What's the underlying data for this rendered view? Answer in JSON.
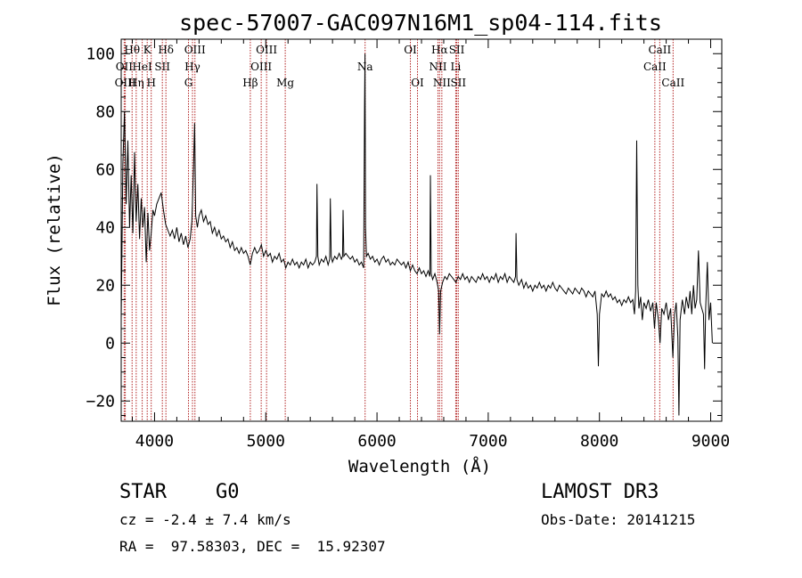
{
  "chart_data": {
    "type": "line",
    "title": "spec-57007-GAC097N16M1_sp04-114.fits",
    "xlabel": "Wavelength (Å)",
    "ylabel": "Flux (relative)",
    "xlim": [
      3700,
      9100
    ],
    "ylim": [
      -27,
      105
    ],
    "xticks": [
      4000,
      5000,
      6000,
      7000,
      8000,
      9000
    ],
    "yticks": [
      -20,
      0,
      20,
      40,
      60,
      80,
      100
    ],
    "grid": false,
    "line_color": "#000000",
    "marker_color": "#b22222",
    "line_markers": [
      {
        "label": "Hθ",
        "x": 3798,
        "row": 0
      },
      {
        "label": "OII",
        "x": 3727,
        "row": 1
      },
      {
        "label": "OIII",
        "x": 3737,
        "row": 2
      },
      {
        "label": "K",
        "x": 3934,
        "row": 0
      },
      {
        "label": "HeI",
        "x": 3889,
        "row": 1
      },
      {
        "label": "Hη",
        "x": 3835,
        "row": 2
      },
      {
        "label": "SII",
        "x": 4070,
        "row": 1
      },
      {
        "label": "H",
        "x": 3970,
        "row": 2
      },
      {
        "label": "Hδ",
        "x": 4102,
        "row": 0
      },
      {
        "label": "OIII",
        "x": 4363,
        "row": 0
      },
      {
        "label": "Hγ",
        "x": 4341,
        "row": 1
      },
      {
        "label": "G",
        "x": 4305,
        "row": 2
      },
      {
        "label": "Hβ",
        "x": 4861,
        "row": 2
      },
      {
        "label": "OIII",
        "x": 5007,
        "row": 0
      },
      {
        "label": "OIII",
        "x": 4959,
        "row": 1
      },
      {
        "label": "Mg",
        "x": 5175,
        "row": 2
      },
      {
        "label": "Na",
        "x": 5893,
        "row": 1
      },
      {
        "label": "OI",
        "x": 6300,
        "row": 0
      },
      {
        "label": "OI",
        "x": 6364,
        "row": 2
      },
      {
        "label": "Hα",
        "x": 6563,
        "row": 0
      },
      {
        "label": "SII",
        "x": 6717,
        "row": 0
      },
      {
        "label": "NII",
        "x": 6548,
        "row": 1
      },
      {
        "label": "Li",
        "x": 6708,
        "row": 1
      },
      {
        "label": "NII",
        "x": 6583,
        "row": 2
      },
      {
        "label": "SII",
        "x": 6731,
        "row": 2
      },
      {
        "label": "CaII",
        "x": 8542,
        "row": 0
      },
      {
        "label": "CaII",
        "x": 8498,
        "row": 1
      },
      {
        "label": "CaII",
        "x": 8662,
        "row": 2
      }
    ],
    "spectrum": [
      [
        3700,
        8
      ],
      [
        3715,
        62
      ],
      [
        3730,
        80
      ],
      [
        3745,
        48
      ],
      [
        3760,
        70
      ],
      [
        3775,
        40
      ],
      [
        3790,
        58
      ],
      [
        3805,
        38
      ],
      [
        3820,
        66
      ],
      [
        3835,
        42
      ],
      [
        3850,
        55
      ],
      [
        3865,
        36
      ],
      [
        3880,
        50
      ],
      [
        3895,
        40
      ],
      [
        3910,
        47
      ],
      [
        3925,
        28
      ],
      [
        3940,
        45
      ],
      [
        3955,
        32
      ],
      [
        3970,
        38
      ],
      [
        3985,
        46
      ],
      [
        4000,
        44
      ],
      [
        4020,
        48
      ],
      [
        4040,
        50
      ],
      [
        4060,
        52
      ],
      [
        4080,
        46
      ],
      [
        4100,
        41
      ],
      [
        4120,
        39
      ],
      [
        4140,
        37
      ],
      [
        4160,
        39
      ],
      [
        4180,
        36
      ],
      [
        4200,
        40
      ],
      [
        4220,
        35
      ],
      [
        4240,
        38
      ],
      [
        4260,
        34
      ],
      [
        4280,
        37
      ],
      [
        4300,
        33
      ],
      [
        4320,
        36
      ],
      [
        4335,
        42
      ],
      [
        4350,
        60
      ],
      [
        4360,
        76
      ],
      [
        4370,
        44
      ],
      [
        4385,
        40
      ],
      [
        4400,
        44
      ],
      [
        4420,
        46
      ],
      [
        4440,
        42
      ],
      [
        4460,
        44
      ],
      [
        4480,
        41
      ],
      [
        4500,
        42
      ],
      [
        4520,
        38
      ],
      [
        4540,
        40
      ],
      [
        4560,
        37
      ],
      [
        4580,
        39
      ],
      [
        4600,
        36
      ],
      [
        4620,
        37
      ],
      [
        4640,
        35
      ],
      [
        4660,
        36
      ],
      [
        4680,
        33
      ],
      [
        4700,
        35
      ],
      [
        4720,
        32
      ],
      [
        4740,
        33
      ],
      [
        4760,
        31
      ],
      [
        4780,
        33
      ],
      [
        4800,
        31
      ],
      [
        4820,
        32
      ],
      [
        4840,
        30
      ],
      [
        4860,
        27
      ],
      [
        4880,
        31
      ],
      [
        4900,
        33
      ],
      [
        4920,
        31
      ],
      [
        4940,
        32
      ],
      [
        4960,
        34
      ],
      [
        4980,
        30
      ],
      [
        5000,
        32
      ],
      [
        5020,
        30
      ],
      [
        5040,
        31
      ],
      [
        5060,
        28
      ],
      [
        5080,
        30
      ],
      [
        5100,
        29
      ],
      [
        5120,
        31
      ],
      [
        5140,
        28
      ],
      [
        5160,
        29
      ],
      [
        5180,
        26
      ],
      [
        5200,
        28
      ],
      [
        5220,
        27
      ],
      [
        5240,
        29
      ],
      [
        5260,
        27
      ],
      [
        5280,
        28
      ],
      [
        5300,
        26
      ],
      [
        5320,
        28
      ],
      [
        5340,
        27
      ],
      [
        5360,
        29
      ],
      [
        5380,
        26
      ],
      [
        5400,
        28
      ],
      [
        5420,
        27
      ],
      [
        5440,
        28
      ],
      [
        5455,
        30
      ],
      [
        5460,
        55
      ],
      [
        5468,
        30
      ],
      [
        5480,
        27
      ],
      [
        5500,
        29
      ],
      [
        5520,
        28
      ],
      [
        5540,
        30
      ],
      [
        5560,
        27
      ],
      [
        5575,
        29
      ],
      [
        5580,
        50
      ],
      [
        5588,
        30
      ],
      [
        5600,
        28
      ],
      [
        5620,
        30
      ],
      [
        5640,
        29
      ],
      [
        5660,
        31
      ],
      [
        5680,
        29
      ],
      [
        5690,
        30
      ],
      [
        5695,
        46
      ],
      [
        5702,
        30
      ],
      [
        5720,
        31
      ],
      [
        5740,
        30
      ],
      [
        5760,
        29
      ],
      [
        5780,
        30
      ],
      [
        5800,
        28
      ],
      [
        5820,
        29
      ],
      [
        5840,
        27
      ],
      [
        5860,
        28
      ],
      [
        5880,
        26
      ],
      [
        5888,
        82
      ],
      [
        5892,
        100
      ],
      [
        5897,
        40
      ],
      [
        5905,
        30
      ],
      [
        5920,
        31
      ],
      [
        5940,
        29
      ],
      [
        5960,
        30
      ],
      [
        5980,
        28
      ],
      [
        6000,
        29
      ],
      [
        6020,
        27
      ],
      [
        6040,
        29
      ],
      [
        6060,
        30
      ],
      [
        6080,
        28
      ],
      [
        6100,
        29
      ],
      [
        6120,
        27
      ],
      [
        6140,
        28
      ],
      [
        6160,
        27
      ],
      [
        6180,
        29
      ],
      [
        6200,
        28
      ],
      [
        6220,
        27
      ],
      [
        6240,
        28
      ],
      [
        6260,
        26
      ],
      [
        6280,
        28
      ],
      [
        6300,
        25
      ],
      [
        6320,
        27
      ],
      [
        6340,
        25
      ],
      [
        6360,
        24
      ],
      [
        6380,
        26
      ],
      [
        6400,
        24
      ],
      [
        6420,
        25
      ],
      [
        6440,
        23
      ],
      [
        6460,
        25
      ],
      [
        6475,
        23
      ],
      [
        6480,
        58
      ],
      [
        6487,
        24
      ],
      [
        6500,
        22
      ],
      [
        6520,
        24
      ],
      [
        6540,
        21
      ],
      [
        6555,
        18
      ],
      [
        6563,
        3
      ],
      [
        6572,
        18
      ],
      [
        6590,
        21
      ],
      [
        6610,
        23
      ],
      [
        6630,
        22
      ],
      [
        6650,
        24
      ],
      [
        6670,
        23
      ],
      [
        6690,
        22
      ],
      [
        6710,
        21
      ],
      [
        6730,
        23
      ],
      [
        6750,
        22
      ],
      [
        6770,
        24
      ],
      [
        6790,
        22
      ],
      [
        6810,
        23
      ],
      [
        6830,
        21
      ],
      [
        6850,
        23
      ],
      [
        6870,
        22
      ],
      [
        6890,
        21
      ],
      [
        6910,
        23
      ],
      [
        6930,
        22
      ],
      [
        6950,
        24
      ],
      [
        6970,
        22
      ],
      [
        6990,
        23
      ],
      [
        7010,
        21
      ],
      [
        7030,
        23
      ],
      [
        7050,
        22
      ],
      [
        7070,
        24
      ],
      [
        7090,
        21
      ],
      [
        7110,
        23
      ],
      [
        7130,
        22
      ],
      [
        7150,
        24
      ],
      [
        7170,
        21
      ],
      [
        7190,
        23
      ],
      [
        7210,
        22
      ],
      [
        7230,
        21
      ],
      [
        7245,
        23
      ],
      [
        7250,
        38
      ],
      [
        7258,
        22
      ],
      [
        7275,
        20
      ],
      [
        7300,
        22
      ],
      [
        7320,
        19
      ],
      [
        7340,
        21
      ],
      [
        7360,
        19
      ],
      [
        7380,
        20
      ],
      [
        7400,
        18
      ],
      [
        7420,
        20
      ],
      [
        7440,
        19
      ],
      [
        7460,
        21
      ],
      [
        7480,
        19
      ],
      [
        7500,
        20
      ],
      [
        7520,
        18
      ],
      [
        7540,
        20
      ],
      [
        7560,
        19
      ],
      [
        7580,
        21
      ],
      [
        7600,
        19
      ],
      [
        7620,
        18
      ],
      [
        7640,
        20
      ],
      [
        7660,
        19
      ],
      [
        7680,
        18
      ],
      [
        7700,
        17
      ],
      [
        7720,
        19
      ],
      [
        7740,
        18
      ],
      [
        7760,
        17
      ],
      [
        7780,
        19
      ],
      [
        7800,
        18
      ],
      [
        7820,
        17
      ],
      [
        7840,
        19
      ],
      [
        7860,
        18
      ],
      [
        7880,
        16
      ],
      [
        7900,
        18
      ],
      [
        7920,
        17
      ],
      [
        7940,
        16
      ],
      [
        7960,
        18
      ],
      [
        7980,
        10
      ],
      [
        7990,
        -8
      ],
      [
        8000,
        10
      ],
      [
        8020,
        17
      ],
      [
        8040,
        16
      ],
      [
        8060,
        18
      ],
      [
        8080,
        16
      ],
      [
        8100,
        17
      ],
      [
        8120,
        15
      ],
      [
        8140,
        16
      ],
      [
        8160,
        14
      ],
      [
        8180,
        15
      ],
      [
        8200,
        13
      ],
      [
        8220,
        15
      ],
      [
        8240,
        14
      ],
      [
        8260,
        16
      ],
      [
        8280,
        14
      ],
      [
        8300,
        15
      ],
      [
        8315,
        10
      ],
      [
        8325,
        18
      ],
      [
        8335,
        70
      ],
      [
        8345,
        20
      ],
      [
        8355,
        12
      ],
      [
        8370,
        16
      ],
      [
        8385,
        8
      ],
      [
        8400,
        14
      ],
      [
        8420,
        12
      ],
      [
        8440,
        15
      ],
      [
        8460,
        11
      ],
      [
        8480,
        14
      ],
      [
        8495,
        5
      ],
      [
        8510,
        14
      ],
      [
        8530,
        8
      ],
      [
        8545,
        0
      ],
      [
        8560,
        12
      ],
      [
        8580,
        10
      ],
      [
        8600,
        14
      ],
      [
        8620,
        8
      ],
      [
        8640,
        12
      ],
      [
        8660,
        -5
      ],
      [
        8675,
        10
      ],
      [
        8690,
        14
      ],
      [
        8705,
        2
      ],
      [
        8715,
        -25
      ],
      [
        8725,
        8
      ],
      [
        8745,
        15
      ],
      [
        8765,
        10
      ],
      [
        8780,
        16
      ],
      [
        8800,
        12
      ],
      [
        8815,
        18
      ],
      [
        8830,
        10
      ],
      [
        8845,
        20
      ],
      [
        8860,
        12
      ],
      [
        8875,
        15
      ],
      [
        8890,
        32
      ],
      [
        8905,
        14
      ],
      [
        8920,
        12
      ],
      [
        8935,
        10
      ],
      [
        8945,
        -9
      ],
      [
        8955,
        12
      ],
      [
        8970,
        28
      ],
      [
        8985,
        8
      ],
      [
        9000,
        14
      ],
      [
        9015,
        0
      ]
    ]
  },
  "footer": {
    "object_class": "STAR",
    "subclass": "G0",
    "redshift_text": "cz = -2.4 ± 7.4 km/s",
    "coords_text": "RA =  97.58303, DEC =  15.92307",
    "survey": "LAMOST DR3",
    "obs_date_text": "Obs-Date: 20141215"
  }
}
